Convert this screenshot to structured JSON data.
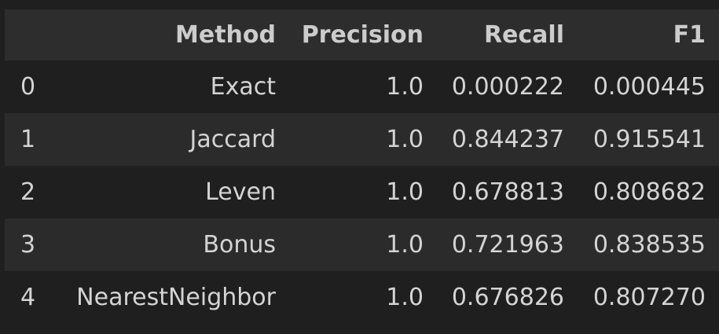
{
  "table": {
    "columns": [
      "",
      "Method",
      "Precision",
      "Recall",
      "F1"
    ],
    "rows": [
      {
        "index": "0",
        "method": "Exact",
        "precision": "1.0",
        "recall": "0.000222",
        "f1": "0.000445"
      },
      {
        "index": "1",
        "method": "Jaccard",
        "precision": "1.0",
        "recall": "0.844237",
        "f1": "0.915541"
      },
      {
        "index": "2",
        "method": "Leven",
        "precision": "1.0",
        "recall": "0.678813",
        "f1": "0.808682"
      },
      {
        "index": "3",
        "method": "Bonus",
        "precision": "1.0",
        "recall": "0.721963",
        "f1": "0.838535"
      },
      {
        "index": "4",
        "method": "NearestNeighbor",
        "precision": "1.0",
        "recall": "0.676826",
        "f1": "0.807270"
      }
    ]
  }
}
